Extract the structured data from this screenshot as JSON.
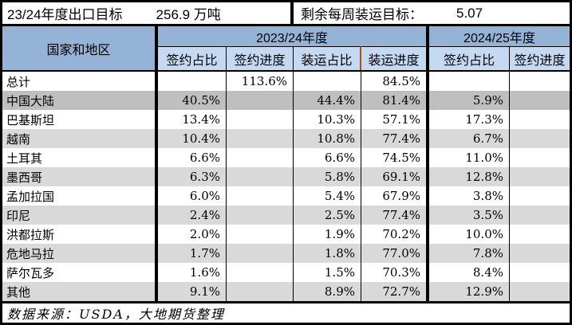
{
  "colors": {
    "header_main": "#95B3D7",
    "header_sub": "#C5D9F1",
    "row_light": "#D9D9D9",
    "row_dark": "#BFBFBF",
    "orange_divider": "#A9530F",
    "border": "#000000",
    "background": "#FFFFFF"
  },
  "top_bar": {
    "target_label": "23/24年度出口目标",
    "target_value": "256.9 万吨",
    "remaining_label": "剩余每周装运目标：",
    "remaining_value": "5.07"
  },
  "table": {
    "corner_header": "国家和地区",
    "groups": [
      {
        "label": "2023/24年度",
        "columns": [
          "签约占比",
          "签约进度",
          "装运占比",
          "装运进度"
        ]
      },
      {
        "label": "2024/25年度",
        "columns": [
          "签约占比",
          "签约进度"
        ]
      }
    ],
    "rows": [
      {
        "name": "总计",
        "values": [
          "",
          "113.6%",
          "",
          "84.5%",
          "",
          ""
        ],
        "shade": "white"
      },
      {
        "name": "中国大陆",
        "values": [
          "40.5%",
          "",
          "44.4%",
          "81.4%",
          "5.9%",
          ""
        ],
        "shade": "dark"
      },
      {
        "name": "巴基斯坦",
        "values": [
          "13.4%",
          "",
          "10.3%",
          "57.1%",
          "17.3%",
          ""
        ],
        "shade": "white"
      },
      {
        "name": "越南",
        "values": [
          "10.4%",
          "",
          "10.8%",
          "77.4%",
          "6.7%",
          ""
        ],
        "shade": "light"
      },
      {
        "name": "土耳其",
        "values": [
          "6.6%",
          "",
          "6.6%",
          "74.5%",
          "11.0%",
          ""
        ],
        "shade": "white"
      },
      {
        "name": "墨西哥",
        "values": [
          "6.3%",
          "",
          "5.8%",
          "69.1%",
          "12.8%",
          ""
        ],
        "shade": "light"
      },
      {
        "name": "孟加拉国",
        "values": [
          "6.0%",
          "",
          "5.4%",
          "67.9%",
          "3.8%",
          ""
        ],
        "shade": "white"
      },
      {
        "name": "印尼",
        "values": [
          "2.4%",
          "",
          "2.5%",
          "77.4%",
          "3.5%",
          ""
        ],
        "shade": "light"
      },
      {
        "name": "洪都拉斯",
        "values": [
          "2.0%",
          "",
          "1.9%",
          "70.2%",
          "10.0%",
          ""
        ],
        "shade": "white"
      },
      {
        "name": "危地马拉",
        "values": [
          "1.7%",
          "",
          "1.8%",
          "77.0%",
          "7.8%",
          ""
        ],
        "shade": "light"
      },
      {
        "name": "萨尔瓦多",
        "values": [
          "1.6%",
          "",
          "1.5%",
          "70.3%",
          "8.4%",
          ""
        ],
        "shade": "white"
      },
      {
        "name": "其他",
        "values": [
          "9.1%",
          "",
          "8.9%",
          "72.7%",
          "12.9%",
          ""
        ],
        "shade": "light"
      }
    ]
  },
  "footer": {
    "source": "数据来源：USDA，大地期货整理"
  }
}
